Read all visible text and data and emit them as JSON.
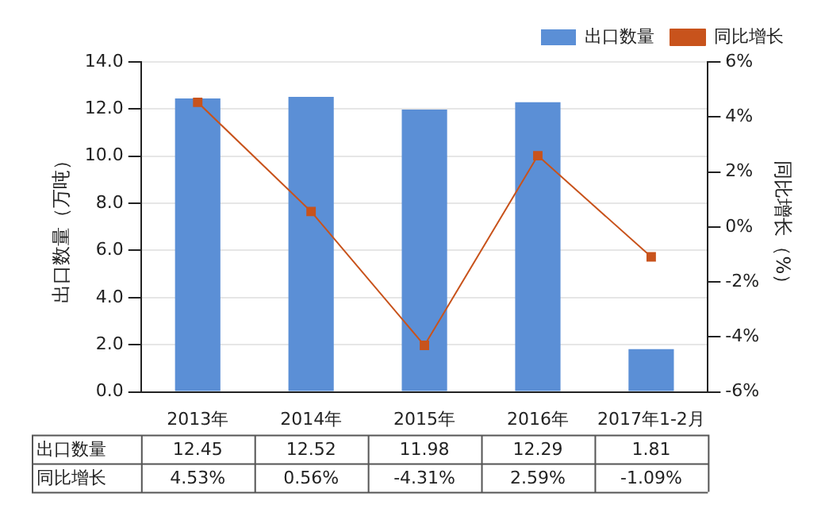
{
  "chart_data": {
    "type": "bar",
    "categories": [
      "2013年",
      "2014年",
      "2015年",
      "2016年",
      "2017年1-2月"
    ],
    "ylabel": "出口数量（万吨）",
    "y2label": "同比增长（%）",
    "series": [
      {
        "name": "出口数量",
        "color": "#5b8fd6",
        "values": [
          12.45,
          12.52,
          11.98,
          12.29,
          1.81
        ],
        "value_labels": [
          "12.45",
          "12.52",
          "11.98",
          "12.29",
          "1.81"
        ]
      },
      {
        "name": "同比增长",
        "type": "line",
        "axis": "y2",
        "color": "#c8531c",
        "marker": "square",
        "values": [
          4.53,
          0.56,
          -4.31,
          2.59,
          -1.09
        ],
        "value_labels": [
          "4.53%",
          "0.56%",
          "-4.31%",
          "2.59%",
          "-1.09%"
        ]
      }
    ],
    "ylim": [
      0,
      14
    ],
    "yticks": [
      {
        "value": 0,
        "label": "0.0"
      },
      {
        "value": 2,
        "label": "2.0"
      },
      {
        "value": 4,
        "label": "4.0"
      },
      {
        "value": 6,
        "label": "6.0"
      },
      {
        "value": 8,
        "label": "8.0"
      },
      {
        "value": 10,
        "label": "10.0"
      },
      {
        "value": 12,
        "label": "12.0"
      },
      {
        "value": 14,
        "label": "14.0"
      }
    ],
    "y2lim": [
      -6,
      6
    ],
    "y2ticks": [
      {
        "value": -6,
        "label": "-6%"
      },
      {
        "value": -4,
        "label": "-4%"
      },
      {
        "value": -2,
        "label": "-2%"
      },
      {
        "value": 0,
        "label": "0%"
      },
      {
        "value": 2,
        "label": "2%"
      },
      {
        "value": 4,
        "label": "4%"
      },
      {
        "value": 6,
        "label": "6%"
      }
    ],
    "grid": "y",
    "legend": "top right"
  }
}
